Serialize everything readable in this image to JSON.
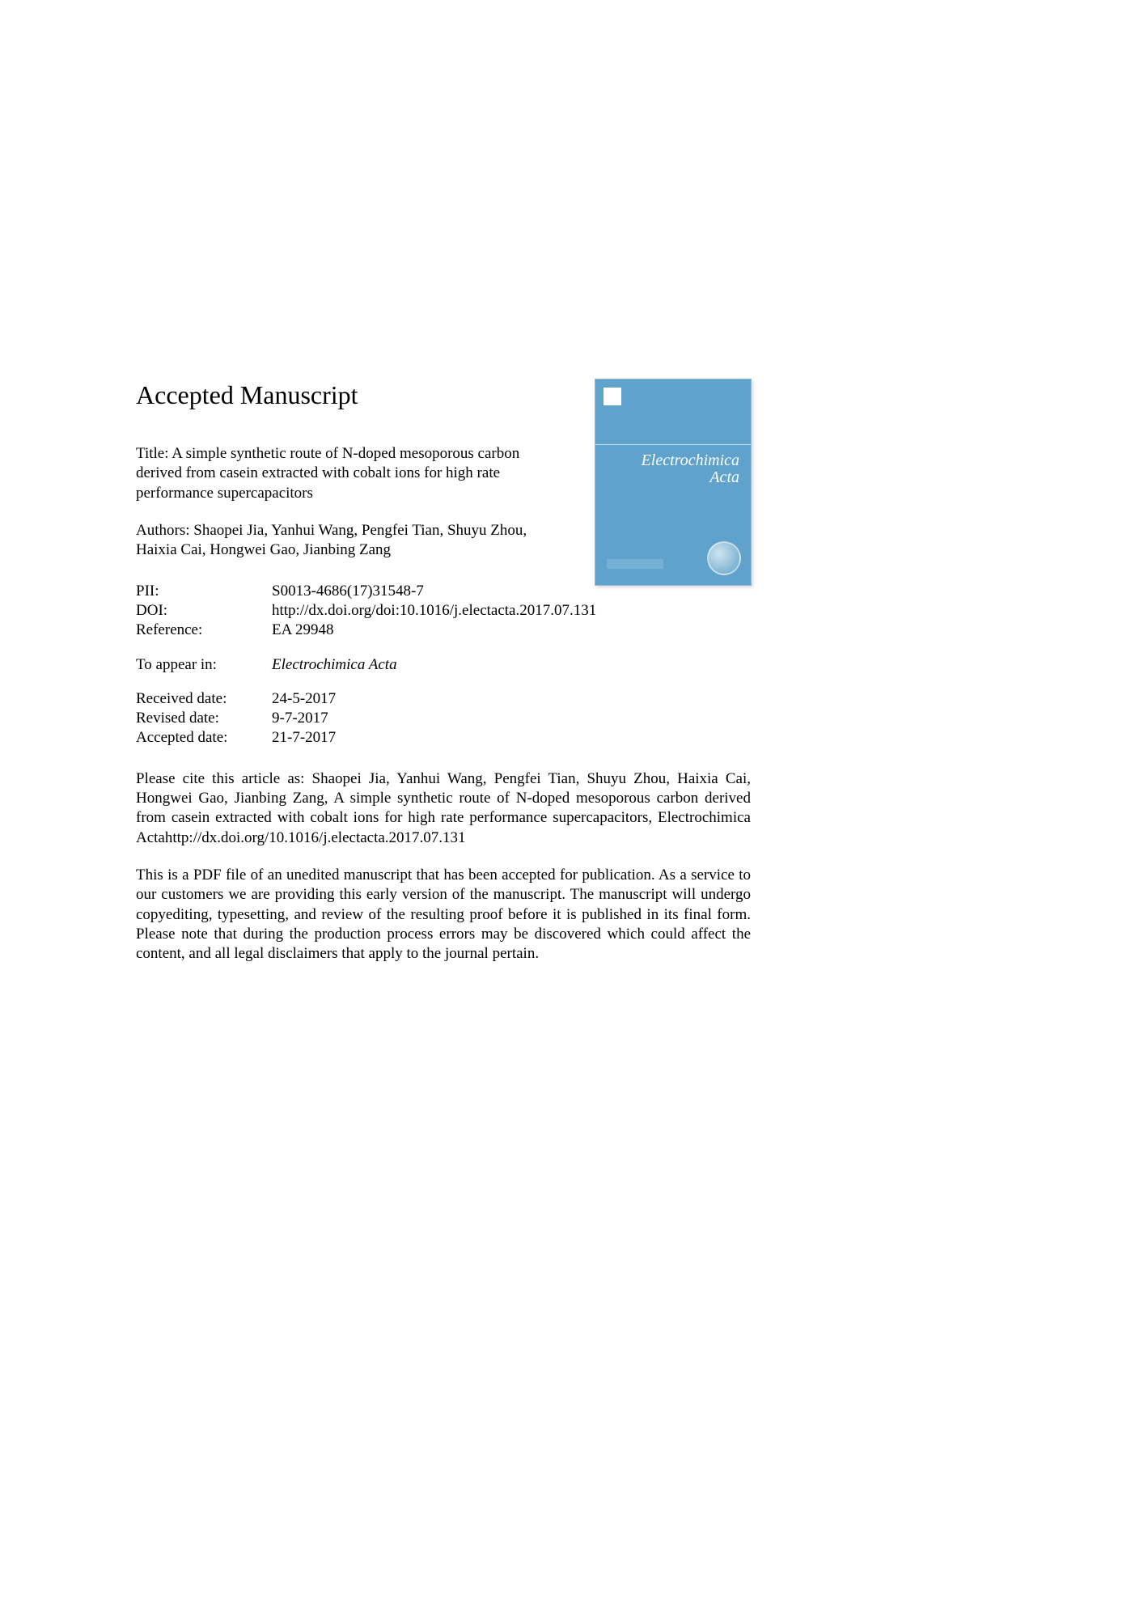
{
  "heading": "Accepted Manuscript",
  "title_prefix": "Title: ",
  "title": "A simple synthetic route of N-doped mesoporous carbon derived from casein extracted with cobalt ions for high rate performance supercapacitors",
  "authors_prefix": "Authors: ",
  "authors": "Shaopei Jia, Yanhui Wang, Pengfei Tian, Shuyu Zhou, Haixia Cai, Hongwei Gao, Jianbing Zang",
  "meta": {
    "pii_label": "PII:",
    "pii": "S0013-4686(17)31548-7",
    "doi_label": "DOI:",
    "doi": "http://dx.doi.org/doi:10.1016/j.electacta.2017.07.131",
    "ref_label": "Reference:",
    "ref": "EA 29948"
  },
  "appear": {
    "label": "To appear in:",
    "value": "Electrochimica Acta"
  },
  "dates": {
    "received_label": "Received date:",
    "received": "24-5-2017",
    "revised_label": "Revised date:",
    "revised": "9-7-2017",
    "accepted_label": "Accepted date:",
    "accepted": "21-7-2017"
  },
  "citation": "Please cite this article as: Shaopei Jia, Yanhui Wang, Pengfei Tian, Shuyu Zhou, Haixia Cai, Hongwei Gao, Jianbing Zang, A simple synthetic route of N-doped mesoporous carbon derived from casein extracted with cobalt ions for high rate performance supercapacitors, Electrochimica Actahttp://dx.doi.org/10.1016/j.electacta.2017.07.131",
  "disclaimer": "This is a PDF file of an unedited manuscript that has been accepted for publication. As a service to our customers we are providing this early version of the manuscript. The manuscript will undergo copyediting, typesetting, and review of the resulting proof before it is published in its final form. Please note that during the production process errors may be discovered which could affect the content, and all legal disclaimers that apply to the journal pertain.",
  "cover": {
    "journal_line1": "Electrochimica",
    "journal_line2": "Acta",
    "background_color": "#5fa3cd",
    "text_color": "#ffffff"
  }
}
